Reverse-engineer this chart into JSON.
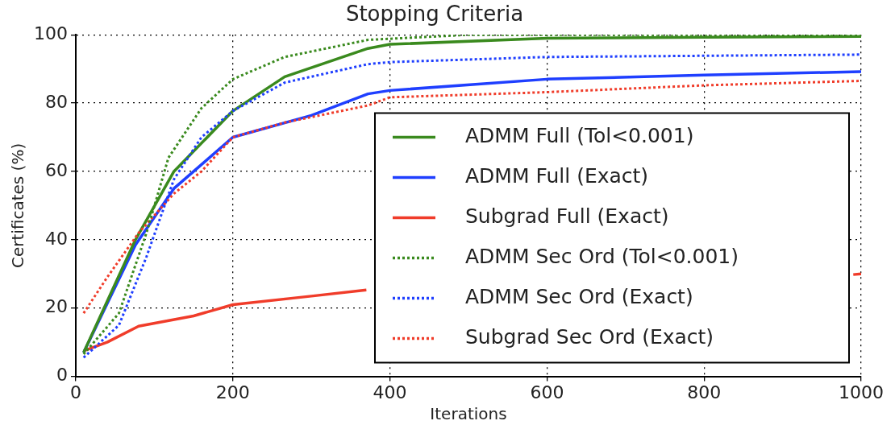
{
  "chart_data": {
    "type": "line",
    "title": "Stopping Criteria",
    "xlabel": "Iterations",
    "ylabel": "Certificates (%)",
    "xlim": [
      0,
      1000
    ],
    "xticks": [
      0,
      200,
      400,
      600,
      800,
      1000
    ],
    "ylim": [
      0,
      100
    ],
    "yticks": [
      0,
      20,
      40,
      60,
      80,
      100
    ],
    "grid": true,
    "legend": "bottom right",
    "marker": "none",
    "series": [
      {
        "name": "ADMM Full (Tol<0.001)",
        "color": "#3a8a1e",
        "line_style": "solid",
        "x": [
          10,
          76,
          125,
          200,
          266,
          372,
          400,
          600,
          800,
          1000
        ],
        "values": [
          7,
          40,
          60,
          77.7,
          87.7,
          96,
          97.2,
          99,
          99.3,
          99.5
        ]
      },
      {
        "name": "ADMM Full (Exact)",
        "color": "#1f3fff",
        "line_style": "solid",
        "x": [
          10,
          76,
          125,
          200,
          300,
          372,
          400,
          600,
          800,
          1000
        ],
        "values": [
          7,
          38.5,
          55,
          70,
          76.4,
          82.7,
          83.7,
          87,
          88.2,
          89.2
        ]
      },
      {
        "name": "Subgrad Full (Exact)",
        "color": "#f03c2a",
        "line_style": "solid",
        "x": [
          10,
          40,
          80,
          150,
          200,
          300,
          370,
          400,
          990,
          1000
        ],
        "values": [
          7.5,
          10,
          14.7,
          17.7,
          21,
          23.5,
          25.3,
          null,
          29.8,
          30
        ]
      },
      {
        "name": "ADMM Sec Ord (Tol<0.001)",
        "color": "#3a8a1e",
        "line_style": "dotted",
        "x": [
          10,
          55,
          90,
          118,
          160,
          200,
          266,
          372,
          500,
          1000
        ],
        "values": [
          6.5,
          18.5,
          42,
          64,
          78.5,
          87,
          93.5,
          98.5,
          100,
          100
        ]
      },
      {
        "name": "ADMM Sec Ord (Exact)",
        "color": "#1f3fff",
        "line_style": "dotted",
        "x": [
          10,
          55,
          90,
          125,
          160,
          200,
          266,
          372,
          400,
          600,
          1000
        ],
        "values": [
          5.5,
          15,
          35,
          57.7,
          70,
          77.7,
          86,
          91.4,
          92,
          93.5,
          94.2
        ]
      },
      {
        "name": "Subgrad Sec Ord (Exact)",
        "color": "#f03c2a",
        "line_style": "dotted",
        "x": [
          10,
          40,
          80,
          125,
          160,
          200,
          266,
          372,
          400,
          600,
          800,
          1000
        ],
        "values": [
          18.5,
          29,
          42,
          53.5,
          60,
          70,
          74.3,
          79.3,
          81.7,
          83.2,
          85.2,
          86.5
        ]
      }
    ]
  }
}
